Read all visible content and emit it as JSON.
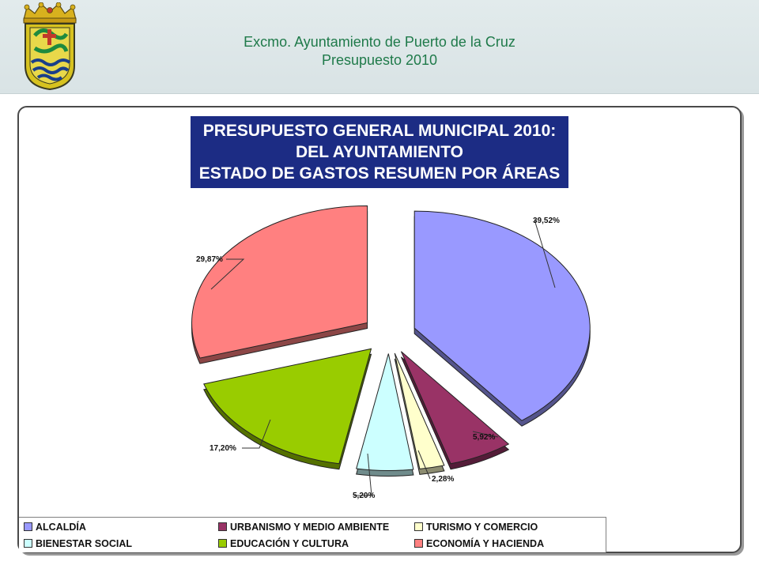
{
  "header": {
    "line1": "Excmo. Ayuntamiento de Puerto de la Cruz",
    "line2": "Presupuesto 2010"
  },
  "colors": {
    "header_text": "#1f7a4a",
    "title_bg": "#1c2c84"
  },
  "chart_data": {
    "type": "pie",
    "style": "3d-exploded",
    "title": [
      "PRESUPUESTO GENERAL MUNICIPAL 2010:",
      "DEL AYUNTAMIENTO",
      "ESTADO DE GASTOS RESUMEN POR ÁREAS"
    ],
    "legend_position": "bottom",
    "slices": [
      {
        "label": "ALCALDÍA",
        "value": 39.52,
        "display": "39,52%",
        "color": "#9999ff"
      },
      {
        "label": "URBANISMO Y MEDIO AMBIENTE",
        "value": 5.92,
        "display": "5,92%",
        "color": "#993366"
      },
      {
        "label": "TURISMO Y COMERCIO",
        "value": 2.28,
        "display": "2,28%",
        "color": "#ffffcc"
      },
      {
        "label": "BIENESTAR SOCIAL",
        "value": 5.2,
        "display": "5,20%",
        "color": "#ccffff"
      },
      {
        "label": "EDUCACIÓN Y CULTURA",
        "value": 17.2,
        "display": "17,20%",
        "color": "#99cc00"
      },
      {
        "label": "ECONOMÍA Y HACIENDA",
        "value": 29.87,
        "display": "29,87%",
        "color": "#ff8080"
      }
    ]
  }
}
